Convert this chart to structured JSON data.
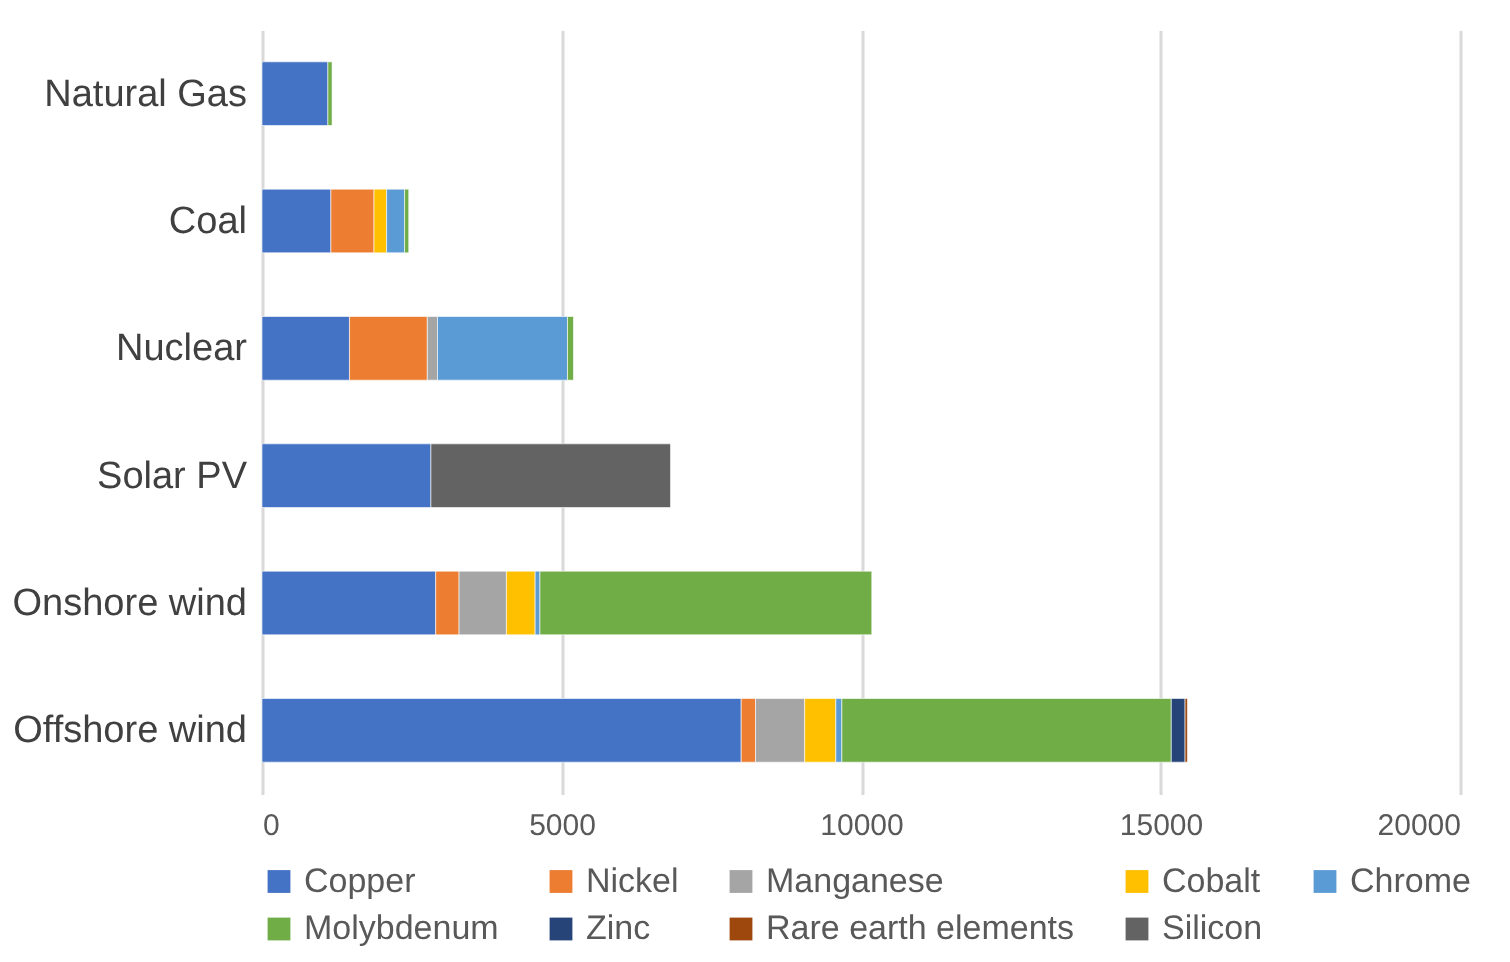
{
  "chart_data": {
    "type": "bar",
    "orientation": "horizontal",
    "stacked": true,
    "categories": [
      "Natural Gas",
      "Coal",
      "Nuclear",
      "Solar PV",
      "Onshore wind",
      "Offshore wind"
    ],
    "series": [
      {
        "name": "Copper",
        "color": "#4472c4",
        "values": [
          1100,
          1150,
          1460,
          2820,
          2900,
          8000
        ]
      },
      {
        "name": "Nickel",
        "color": "#ed7d31",
        "values": [
          null,
          720,
          1300,
          null,
          390,
          240
        ]
      },
      {
        "name": "Manganese",
        "color": "#a5a5a5",
        "values": [
          null,
          null,
          170,
          null,
          790,
          820
        ]
      },
      {
        "name": "Cobalt",
        "color": "#ffc000",
        "values": [
          null,
          210,
          null,
          null,
          480,
          520
        ]
      },
      {
        "name": "Chrome",
        "color": "#5b9bd5",
        "values": [
          null,
          300,
          2170,
          null,
          80,
          100
        ]
      },
      {
        "name": "Molybdenum",
        "color": "#70ad47",
        "values": [
          70,
          70,
          100,
          null,
          5540,
          5500
        ]
      },
      {
        "name": "Zinc",
        "color": "#264478",
        "values": [
          null,
          null,
          null,
          null,
          null,
          230
        ]
      },
      {
        "name": "Rare earth elements",
        "color": "#9e480e",
        "values": [
          null,
          null,
          null,
          null,
          null,
          40
        ]
      },
      {
        "name": "Silicon",
        "color": "#636363",
        "values": [
          null,
          null,
          null,
          4000,
          null,
          null
        ]
      }
    ],
    "xlim": [
      0,
      20000
    ],
    "xticks": [
      0,
      {
        "value": 5000,
        "label": "5000"
      },
      {
        "value": 10000,
        "label": "10000"
      },
      {
        "value": 15000,
        "label": "15000"
      },
      {
        "value": 20000,
        "label": "20000"
      }
    ],
    "grid": "x",
    "legend": "bottom"
  }
}
